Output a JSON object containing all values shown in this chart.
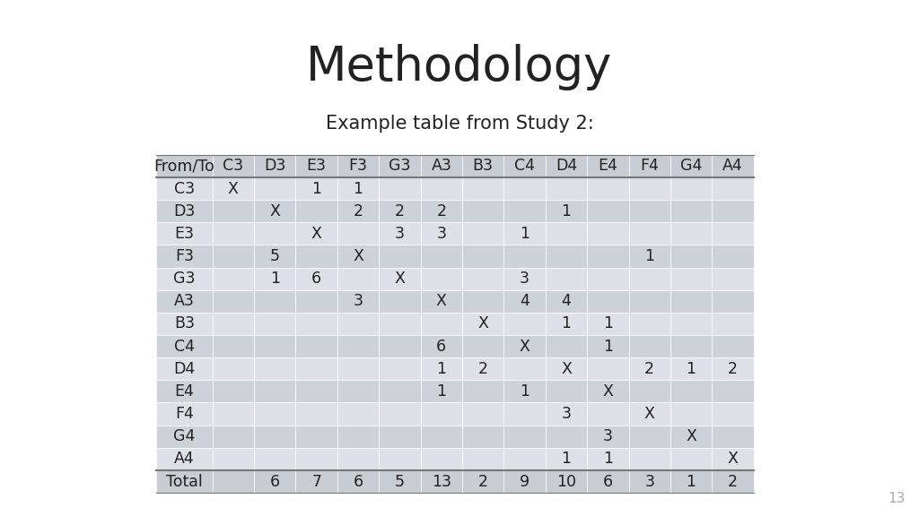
{
  "title": "Methodology",
  "subtitle": "Example table from Study 2:",
  "col_headers": [
    "From/To",
    "C3",
    "D3",
    "E3",
    "F3",
    "G3",
    "A3",
    "B3",
    "C4",
    "D4",
    "E4",
    "F4",
    "G4",
    "A4"
  ],
  "rows": [
    [
      "C3",
      "X",
      "",
      "1",
      "1",
      "",
      "",
      "",
      "",
      "",
      "",
      "",
      "",
      ""
    ],
    [
      "D3",
      "",
      "X",
      "",
      "2",
      "2",
      "2",
      "",
      "",
      "1",
      "",
      "",
      "",
      ""
    ],
    [
      "E3",
      "",
      "",
      "X",
      "",
      "3",
      "3",
      "",
      "1",
      "",
      "",
      "",
      "",
      ""
    ],
    [
      "F3",
      "",
      "5",
      "",
      "X",
      "",
      "",
      "",
      "",
      "",
      "",
      "1",
      "",
      ""
    ],
    [
      "G3",
      "",
      "1",
      "6",
      "",
      "X",
      "",
      "",
      "3",
      "",
      "",
      "",
      "",
      ""
    ],
    [
      "A3",
      "",
      "",
      "",
      "3",
      "",
      "X",
      "",
      "4",
      "4",
      "",
      "",
      "",
      ""
    ],
    [
      "B3",
      "",
      "",
      "",
      "",
      "",
      "",
      "X",
      "",
      "1",
      "1",
      "",
      "",
      ""
    ],
    [
      "C4",
      "",
      "",
      "",
      "",
      "",
      "6",
      "",
      "X",
      "",
      "1",
      "",
      "",
      ""
    ],
    [
      "D4",
      "",
      "",
      "",
      "",
      "",
      "1",
      "2",
      "",
      "X",
      "",
      "2",
      "1",
      "2"
    ],
    [
      "E4",
      "",
      "",
      "",
      "",
      "",
      "1",
      "",
      "1",
      "",
      "X",
      "",
      "",
      ""
    ],
    [
      "F4",
      "",
      "",
      "",
      "",
      "",
      "",
      "",
      "",
      "3",
      "",
      "X",
      "",
      ""
    ],
    [
      "G4",
      "",
      "",
      "",
      "",
      "",
      "",
      "",
      "",
      "",
      "3",
      "",
      "X",
      ""
    ],
    [
      "A4",
      "",
      "",
      "",
      "",
      "",
      "",
      "",
      "",
      "1",
      "1",
      "",
      "",
      "X"
    ]
  ],
  "total_row": [
    "Total",
    "",
    "6",
    "7",
    "6",
    "5",
    "13",
    "2",
    "9",
    "10",
    "6",
    "3",
    "1",
    "2"
  ],
  "header_bg": "#c8cdd4",
  "row_bg_light": "#dde1e7",
  "row_bg_dark": "#cdd1d8",
  "total_bg": "#c8cdd4",
  "text_color": "#222222",
  "page_number": "13",
  "title_fontsize": 38,
  "subtitle_fontsize": 15,
  "table_fontsize": 12.5
}
